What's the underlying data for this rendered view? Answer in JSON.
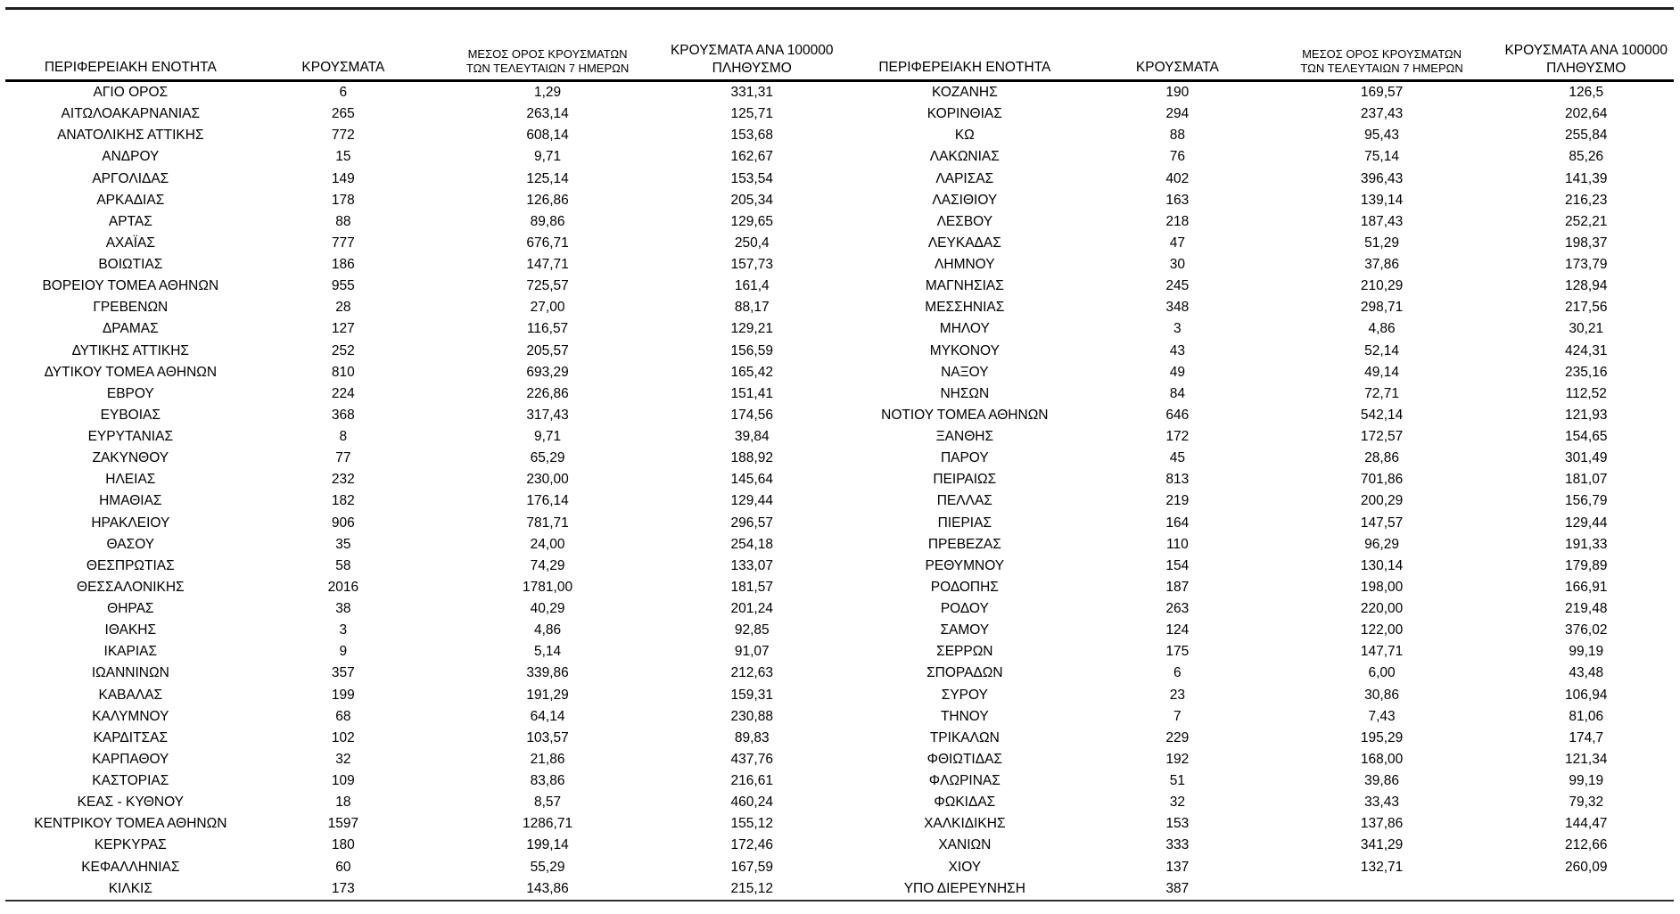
{
  "headers": {
    "region": "ΠΕΡΙΦΕΡΕΙΑΚΗ ΕΝΟΤΗΤΑ",
    "cases": "ΚΡΟΥΣΜΑΤΑ",
    "avg7_line1": "ΜΕΣΟΣ ΟΡΟΣ ΚΡΟΥΣΜΑΤΩΝ",
    "avg7_line2": "ΤΩΝ ΤΕΛΕΥΤΑΙΩΝ 7 ΗΜΕΡΩΝ",
    "per100k_line1": "ΚΡΟΥΣΜΑΤΑ ΑΝΑ 100000",
    "per100k_line2": "ΠΛΗΘΥΣΜΟ"
  },
  "table": {
    "left_rows": [
      [
        "ΑΓΙΟ ΟΡΟΣ",
        "6",
        "1,29",
        "331,31"
      ],
      [
        "ΑΙΤΩΛΟΑΚΑΡΝΑΝΙΑΣ",
        "265",
        "263,14",
        "125,71"
      ],
      [
        "ΑΝΑΤΟΛΙΚΗΣ ΑΤΤΙΚΗΣ",
        "772",
        "608,14",
        "153,68"
      ],
      [
        "ΑΝΔΡΟΥ",
        "15",
        "9,71",
        "162,67"
      ],
      [
        "ΑΡΓΟΛΙΔΑΣ",
        "149",
        "125,14",
        "153,54"
      ],
      [
        "ΑΡΚΑΔΙΑΣ",
        "178",
        "126,86",
        "205,34"
      ],
      [
        "ΑΡΤΑΣ",
        "88",
        "89,86",
        "129,65"
      ],
      [
        "ΑΧΑΪΑΣ",
        "777",
        "676,71",
        "250,4"
      ],
      [
        "ΒΟΙΩΤΙΑΣ",
        "186",
        "147,71",
        "157,73"
      ],
      [
        "ΒΟΡΕΙΟΥ ΤΟΜΕΑ ΑΘΗΝΩΝ",
        "955",
        "725,57",
        "161,4"
      ],
      [
        "ΓΡΕΒΕΝΩΝ",
        "28",
        "27,00",
        "88,17"
      ],
      [
        "ΔΡΑΜΑΣ",
        "127",
        "116,57",
        "129,21"
      ],
      [
        "ΔΥΤΙΚΗΣ ΑΤΤΙΚΗΣ",
        "252",
        "205,57",
        "156,59"
      ],
      [
        "ΔΥΤΙΚΟΥ ΤΟΜΕΑ ΑΘΗΝΩΝ",
        "810",
        "693,29",
        "165,42"
      ],
      [
        "ΕΒΡΟΥ",
        "224",
        "226,86",
        "151,41"
      ],
      [
        "ΕΥΒΟΙΑΣ",
        "368",
        "317,43",
        "174,56"
      ],
      [
        "ΕΥΡΥΤΑΝΙΑΣ",
        "8",
        "9,71",
        "39,84"
      ],
      [
        "ΖΑΚΥΝΘΟΥ",
        "77",
        "65,29",
        "188,92"
      ],
      [
        "ΗΛΕΙΑΣ",
        "232",
        "230,00",
        "145,64"
      ],
      [
        "ΗΜΑΘΙΑΣ",
        "182",
        "176,14",
        "129,44"
      ],
      [
        "ΗΡΑΚΛΕΙΟΥ",
        "906",
        "781,71",
        "296,57"
      ],
      [
        "ΘΑΣΟΥ",
        "35",
        "24,00",
        "254,18"
      ],
      [
        "ΘΕΣΠΡΩΤΙΑΣ",
        "58",
        "74,29",
        "133,07"
      ],
      [
        "ΘΕΣΣΑΛΟΝΙΚΗΣ",
        "2016",
        "1781,00",
        "181,57"
      ],
      [
        "ΘΗΡΑΣ",
        "38",
        "40,29",
        "201,24"
      ],
      [
        "ΙΘΑΚΗΣ",
        "3",
        "4,86",
        "92,85"
      ],
      [
        "ΙΚΑΡΙΑΣ",
        "9",
        "5,14",
        "91,07"
      ],
      [
        "ΙΩΑΝΝΙΝΩΝ",
        "357",
        "339,86",
        "212,63"
      ],
      [
        "ΚΑΒΑΛΑΣ",
        "199",
        "191,29",
        "159,31"
      ],
      [
        "ΚΑΛΥΜΝΟΥ",
        "68",
        "64,14",
        "230,88"
      ],
      [
        "ΚΑΡΔΙΤΣΑΣ",
        "102",
        "103,57",
        "89,83"
      ],
      [
        "ΚΑΡΠΑΘΟΥ",
        "32",
        "21,86",
        "437,76"
      ],
      [
        "ΚΑΣΤΟΡΙΑΣ",
        "109",
        "83,86",
        "216,61"
      ],
      [
        "ΚΕΑΣ - ΚΥΘΝΟΥ",
        "18",
        "8,57",
        "460,24"
      ],
      [
        "ΚΕΝΤΡΙΚΟΥ ΤΟΜΕΑ ΑΘΗΝΩΝ",
        "1597",
        "1286,71",
        "155,12"
      ],
      [
        "ΚΕΡΚΥΡΑΣ",
        "180",
        "199,14",
        "172,46"
      ],
      [
        "ΚΕΦΑΛΛΗΝΙΑΣ",
        "60",
        "55,29",
        "167,59"
      ],
      [
        "ΚΙΛΚΙΣ",
        "173",
        "143,86",
        "215,12"
      ]
    ],
    "right_rows": [
      [
        "ΚΟΖΑΝΗΣ",
        "190",
        "169,57",
        "126,5"
      ],
      [
        "ΚΟΡΙΝΘΙΑΣ",
        "294",
        "237,43",
        "202,64"
      ],
      [
        "ΚΩ",
        "88",
        "95,43",
        "255,84"
      ],
      [
        "ΛΑΚΩΝΙΑΣ",
        "76",
        "75,14",
        "85,26"
      ],
      [
        "ΛΑΡΙΣΑΣ",
        "402",
        "396,43",
        "141,39"
      ],
      [
        "ΛΑΣΙΘΙΟΥ",
        "163",
        "139,14",
        "216,23"
      ],
      [
        "ΛΕΣΒΟΥ",
        "218",
        "187,43",
        "252,21"
      ],
      [
        "ΛΕΥΚΑΔΑΣ",
        "47",
        "51,29",
        "198,37"
      ],
      [
        "ΛΗΜΝΟΥ",
        "30",
        "37,86",
        "173,79"
      ],
      [
        "ΜΑΓΝΗΣΙΑΣ",
        "245",
        "210,29",
        "128,94"
      ],
      [
        "ΜΕΣΣΗΝΙΑΣ",
        "348",
        "298,71",
        "217,56"
      ],
      [
        "ΜΗΛΟΥ",
        "3",
        "4,86",
        "30,21"
      ],
      [
        "ΜΥΚΟΝΟΥ",
        "43",
        "52,14",
        "424,31"
      ],
      [
        "ΝΑΞΟΥ",
        "49",
        "49,14",
        "235,16"
      ],
      [
        "ΝΗΣΩΝ",
        "84",
        "72,71",
        "112,52"
      ],
      [
        "ΝΟΤΙΟΥ ΤΟΜΕΑ ΑΘΗΝΩΝ",
        "646",
        "542,14",
        "121,93"
      ],
      [
        "ΞΑΝΘΗΣ",
        "172",
        "172,57",
        "154,65"
      ],
      [
        "ΠΑΡΟΥ",
        "45",
        "28,86",
        "301,49"
      ],
      [
        "ΠΕΙΡΑΙΩΣ",
        "813",
        "701,86",
        "181,07"
      ],
      [
        "ΠΕΛΛΑΣ",
        "219",
        "200,29",
        "156,79"
      ],
      [
        "ΠΙΕΡΙΑΣ",
        "164",
        "147,57",
        "129,44"
      ],
      [
        "ΠΡΕΒΕΖΑΣ",
        "110",
        "96,29",
        "191,33"
      ],
      [
        "ΡΕΘΥΜΝΟΥ",
        "154",
        "130,14",
        "179,89"
      ],
      [
        "ΡΟΔΟΠΗΣ",
        "187",
        "198,00",
        "166,91"
      ],
      [
        "ΡΟΔΟΥ",
        "263",
        "220,00",
        "219,48"
      ],
      [
        "ΣΑΜΟΥ",
        "124",
        "122,00",
        "376,02"
      ],
      [
        "ΣΕΡΡΩΝ",
        "175",
        "147,71",
        "99,19"
      ],
      [
        "ΣΠΟΡΑΔΩΝ",
        "6",
        "6,00",
        "43,48"
      ],
      [
        "ΣΥΡΟΥ",
        "23",
        "30,86",
        "106,94"
      ],
      [
        "ΤΗΝΟΥ",
        "7",
        "7,43",
        "81,06"
      ],
      [
        "ΤΡΙΚΑΛΩΝ",
        "229",
        "195,29",
        "174,7"
      ],
      [
        "ΦΘΙΩΤΙΔΑΣ",
        "192",
        "168,00",
        "121,34"
      ],
      [
        "ΦΛΩΡΙΝΑΣ",
        "51",
        "39,86",
        "99,19"
      ],
      [
        "ΦΩΚΙΔΑΣ",
        "32",
        "33,43",
        "79,32"
      ],
      [
        "ΧΑΛΚΙΔΙΚΗΣ",
        "153",
        "137,86",
        "144,47"
      ],
      [
        "ΧΑΝΙΩΝ",
        "333",
        "341,29",
        "212,66"
      ],
      [
        "ΧΙΟΥ",
        "137",
        "132,71",
        "260,09"
      ],
      [
        "ΥΠΟ ΔΙΕΡΕΥΝΗΣΗ",
        "387",
        "",
        ""
      ]
    ]
  }
}
